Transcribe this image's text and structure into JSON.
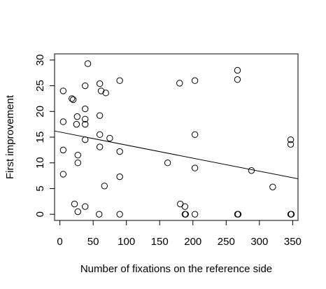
{
  "chart_data": {
    "type": "scatter",
    "title": "",
    "xlabel": "Number of fixations on the reference side",
    "ylabel": "First improvement",
    "xlim": [
      -8,
      358
    ],
    "ylim": [
      -1.2,
      31.2
    ],
    "xticks": [
      0,
      50,
      100,
      150,
      200,
      250,
      300,
      350
    ],
    "yticks": [
      0,
      5,
      10,
      15,
      20,
      25,
      30
    ],
    "grid": false,
    "legend": "none",
    "series": [
      {
        "points": [
          [
            5,
            24
          ],
          [
            5,
            18
          ],
          [
            5,
            12.5
          ],
          [
            5,
            7.8
          ],
          [
            18,
            22.5
          ],
          [
            20,
            22.3
          ],
          [
            22,
            2
          ],
          [
            25,
            17.5
          ],
          [
            26,
            19
          ],
          [
            27,
            11.5
          ],
          [
            27,
            10
          ],
          [
            27,
            0.5
          ],
          [
            38,
            25
          ],
          [
            38,
            20.5
          ],
          [
            38,
            18.5
          ],
          [
            38,
            17.5
          ],
          [
            38,
            14.5
          ],
          [
            38,
            1.5
          ],
          [
            42,
            29.3
          ],
          [
            59,
            0
          ],
          [
            60,
            25.4
          ],
          [
            60,
            19.2
          ],
          [
            60,
            15.5
          ],
          [
            60,
            13.1
          ],
          [
            62,
            24
          ],
          [
            67,
            5.5
          ],
          [
            69,
            23.6
          ],
          [
            75,
            14.8
          ],
          [
            90,
            26
          ],
          [
            90,
            12.2
          ],
          [
            90,
            7.3
          ],
          [
            90,
            0
          ],
          [
            162,
            10
          ],
          [
            180,
            25.5
          ],
          [
            181,
            2
          ],
          [
            188,
            1.5
          ],
          [
            188,
            0
          ],
          [
            189,
            0
          ],
          [
            203,
            26
          ],
          [
            203,
            15.5
          ],
          [
            203,
            9
          ],
          [
            203,
            0
          ],
          [
            267,
            28
          ],
          [
            267,
            26.2
          ],
          [
            267,
            0
          ],
          [
            268,
            0
          ],
          [
            288,
            8.5
          ],
          [
            320,
            5.3
          ],
          [
            347,
            14.5
          ],
          [
            347,
            13.6
          ],
          [
            347,
            0
          ],
          [
            348,
            0
          ]
        ]
      }
    ],
    "trendline": {
      "x": [
        -8,
        358
      ],
      "y": [
        16.2,
        6.9
      ]
    }
  }
}
